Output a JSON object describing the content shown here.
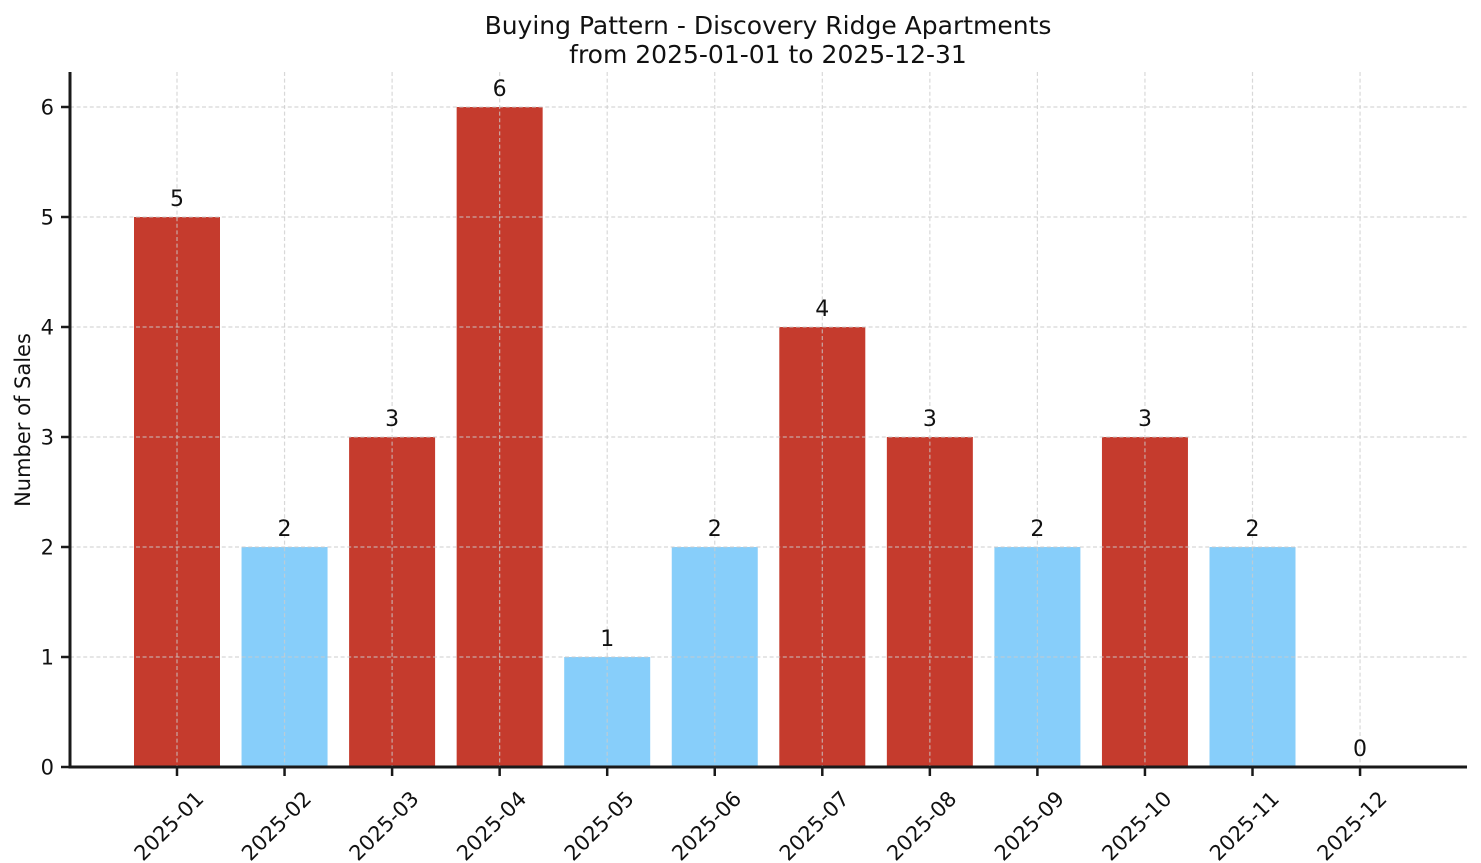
{
  "chart_data": {
    "type": "bar",
    "title_line1": "Buying Pattern - Discovery Ridge Apartments",
    "title_line2": "from 2025-01-01 to 2025-12-31",
    "title": "Buying Pattern - Discovery Ridge Apartments\nfrom 2025-01-01 to 2025-12-31",
    "xlabel": "",
    "ylabel": "Number of Sales",
    "categories": [
      "2025-01",
      "2025-02",
      "2025-03",
      "2025-04",
      "2025-05",
      "2025-06",
      "2025-07",
      "2025-08",
      "2025-09",
      "2025-10",
      "2025-11",
      "2025-12"
    ],
    "values": [
      5,
      2,
      3,
      6,
      1,
      2,
      4,
      3,
      2,
      3,
      2,
      0
    ],
    "value_labels": [
      "5",
      "2",
      "3",
      "6",
      "1",
      "2",
      "4",
      "3",
      "2",
      "3",
      "2",
      "0"
    ],
    "bar_color_names": [
      "red",
      "blue",
      "red",
      "red",
      "blue",
      "blue",
      "red",
      "red",
      "blue",
      "red",
      "blue",
      "none"
    ],
    "colors": {
      "red": "#c53b2d",
      "blue": "#87cefa",
      "grid": "#cccccc",
      "axis": "#1a1a1a",
      "text": "#111111",
      "background": "#ffffff"
    },
    "yticks": [
      "0",
      "1",
      "2",
      "3",
      "4",
      "5",
      "6"
    ],
    "ylim": [
      0,
      6.32
    ],
    "x_tick_rotation_deg": 45,
    "grid": "dashed, horizontal and vertical, drawn above bars",
    "legend_position": "none"
  }
}
